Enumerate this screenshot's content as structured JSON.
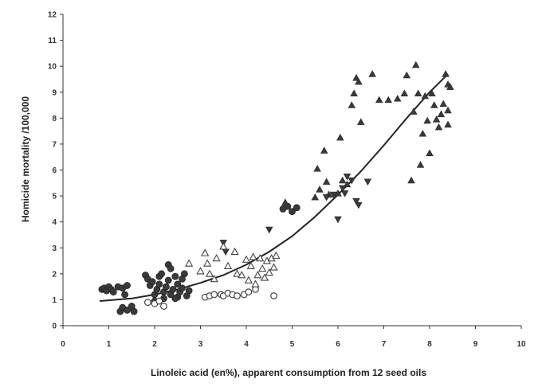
{
  "chart_data": {
    "type": "scatter",
    "title": "",
    "xlabel": "Linoleic acid  (en%), apparent consumption from 12 seed oils",
    "ylabel": "Homicide mortality /100,000",
    "xlim": [
      0,
      10
    ],
    "ylim": [
      0,
      12
    ],
    "x_ticks": [
      "0",
      "1",
      "2",
      "3",
      "4",
      "5",
      "6",
      "7",
      "8",
      "9",
      "10"
    ],
    "y_ticks": [
      "0",
      "1",
      "2",
      "3",
      "4",
      "5",
      "6",
      "7",
      "8",
      "9",
      "10",
      "11",
      "12"
    ],
    "grid": false,
    "legend": "none",
    "colors": {
      "filled": "#3a3a3a",
      "open_stroke": "#444444",
      "trend": "#222222"
    },
    "trend_line": {
      "type": "quadratic fit",
      "x": [
        0.8,
        1.5,
        2,
        2.5,
        3,
        3.5,
        4,
        4.5,
        5,
        5.5,
        6,
        6.5,
        7,
        7.5,
        8,
        8.4
      ],
      "y": [
        0.95,
        1.05,
        1.2,
        1.4,
        1.65,
        1.95,
        2.35,
        2.85,
        3.45,
        4.2,
        5.05,
        5.95,
        6.95,
        8.0,
        9.0,
        9.7
      ]
    },
    "series": [
      {
        "marker": "filled-circle",
        "points": [
          [
            0.85,
            1.4
          ],
          [
            0.9,
            1.45
          ],
          [
            0.95,
            1.35
          ],
          [
            1.0,
            1.5
          ],
          [
            1.05,
            1.4
          ],
          [
            1.1,
            1.3
          ],
          [
            1.2,
            1.5
          ],
          [
            1.3,
            1.45
          ],
          [
            1.35,
            1.2
          ],
          [
            1.4,
            1.55
          ],
          [
            1.25,
            0.55
          ],
          [
            1.3,
            0.7
          ],
          [
            1.4,
            0.6
          ],
          [
            1.5,
            0.75
          ],
          [
            1.55,
            0.55
          ],
          [
            1.8,
            1.95
          ],
          [
            1.85,
            1.8
          ],
          [
            1.9,
            1.55
          ],
          [
            1.95,
            1.7
          ],
          [
            2.0,
            1.2
          ],
          [
            2.05,
            1.4
          ],
          [
            2.1,
            1.6
          ],
          [
            2.1,
            1.9
          ],
          [
            2.15,
            2.0
          ],
          [
            2.2,
            1.3
          ],
          [
            2.25,
            1.5
          ],
          [
            2.3,
            1.75
          ],
          [
            2.35,
            1.2
          ],
          [
            2.4,
            1.4
          ],
          [
            2.45,
            1.9
          ],
          [
            2.5,
            1.6
          ],
          [
            2.5,
            1.1
          ],
          [
            2.55,
            1.3
          ],
          [
            2.6,
            1.45
          ],
          [
            2.6,
            1.8
          ],
          [
            2.65,
            2.0
          ],
          [
            2.7,
            1.15
          ],
          [
            2.75,
            1.35
          ],
          [
            2.3,
            2.35
          ],
          [
            2.35,
            2.2
          ],
          [
            2.2,
            1.05
          ],
          [
            2.0,
            0.95
          ],
          [
            2.45,
            1.05
          ],
          [
            4.8,
            4.5
          ],
          [
            4.9,
            4.6
          ],
          [
            5.0,
            4.4
          ],
          [
            5.1,
            4.55
          ]
        ]
      },
      {
        "marker": "open-circle",
        "points": [
          [
            1.85,
            0.9
          ],
          [
            2.0,
            0.85
          ],
          [
            2.1,
            0.95
          ],
          [
            2.2,
            0.75
          ],
          [
            3.1,
            1.1
          ],
          [
            3.2,
            1.15
          ],
          [
            3.3,
            1.2
          ],
          [
            3.45,
            1.2
          ],
          [
            3.5,
            1.15
          ],
          [
            3.6,
            1.25
          ],
          [
            3.7,
            1.2
          ],
          [
            3.8,
            1.15
          ],
          [
            3.95,
            1.2
          ],
          [
            4.05,
            1.3
          ],
          [
            4.6,
            1.15
          ],
          [
            4.2,
            1.4
          ]
        ]
      },
      {
        "marker": "filled-triangle-up",
        "points": [
          [
            4.85,
            4.75
          ],
          [
            5.5,
            4.95
          ],
          [
            5.55,
            6.05
          ],
          [
            5.6,
            5.25
          ],
          [
            5.7,
            6.75
          ],
          [
            5.75,
            5.55
          ],
          [
            5.8,
            5.05
          ],
          [
            6.0,
            5.1
          ],
          [
            6.05,
            7.25
          ],
          [
            6.1,
            5.6
          ],
          [
            6.2,
            5.45
          ],
          [
            6.3,
            8.5
          ],
          [
            6.35,
            8.95
          ],
          [
            6.4,
            9.55
          ],
          [
            6.45,
            9.4
          ],
          [
            6.5,
            7.85
          ],
          [
            6.75,
            9.7
          ],
          [
            6.9,
            8.7
          ],
          [
            7.1,
            8.7
          ],
          [
            7.3,
            8.75
          ],
          [
            7.45,
            8.95
          ],
          [
            7.5,
            9.65
          ],
          [
            7.6,
            5.6
          ],
          [
            7.65,
            8.25
          ],
          [
            7.7,
            10.05
          ],
          [
            7.75,
            8.95
          ],
          [
            7.8,
            6.2
          ],
          [
            7.85,
            7.4
          ],
          [
            7.9,
            8.85
          ],
          [
            7.95,
            7.9
          ],
          [
            8.0,
            6.65
          ],
          [
            8.05,
            8.95
          ],
          [
            8.1,
            8.5
          ],
          [
            8.15,
            7.95
          ],
          [
            8.2,
            7.65
          ],
          [
            8.25,
            8.15
          ],
          [
            8.3,
            8.55
          ],
          [
            8.35,
            9.7
          ],
          [
            8.4,
            9.3
          ],
          [
            8.45,
            9.2
          ],
          [
            8.4,
            7.75
          ],
          [
            8.4,
            8.3
          ]
        ]
      },
      {
        "marker": "filled-triangle-down",
        "points": [
          [
            3.5,
            3.2
          ],
          [
            3.55,
            2.85
          ],
          [
            4.5,
            3.7
          ],
          [
            5.75,
            4.95
          ],
          [
            5.9,
            5.05
          ],
          [
            6.0,
            4.1
          ],
          [
            6.1,
            5.3
          ],
          [
            6.15,
            5.1
          ],
          [
            6.2,
            5.75
          ],
          [
            6.3,
            5.6
          ],
          [
            6.4,
            4.8
          ],
          [
            6.45,
            4.65
          ],
          [
            6.65,
            5.55
          ]
        ]
      },
      {
        "marker": "open-triangle-up",
        "points": [
          [
            2.75,
            2.4
          ],
          [
            3.0,
            2.1
          ],
          [
            3.1,
            2.8
          ],
          [
            3.15,
            2.4
          ],
          [
            3.2,
            2.0
          ],
          [
            3.3,
            1.8
          ],
          [
            3.35,
            2.6
          ],
          [
            3.5,
            3.05
          ],
          [
            3.6,
            2.3
          ],
          [
            3.75,
            2.85
          ],
          [
            3.8,
            2.0
          ],
          [
            3.9,
            1.95
          ],
          [
            4.0,
            2.55
          ],
          [
            4.05,
            1.75
          ],
          [
            4.1,
            2.3
          ],
          [
            4.15,
            2.65
          ],
          [
            4.2,
            1.6
          ],
          [
            4.25,
            1.95
          ],
          [
            4.3,
            2.6
          ],
          [
            4.35,
            2.2
          ],
          [
            4.4,
            1.85
          ],
          [
            4.45,
            2.5
          ],
          [
            4.5,
            2.05
          ],
          [
            4.55,
            2.6
          ],
          [
            4.6,
            2.25
          ],
          [
            4.65,
            2.7
          ]
        ]
      }
    ]
  }
}
